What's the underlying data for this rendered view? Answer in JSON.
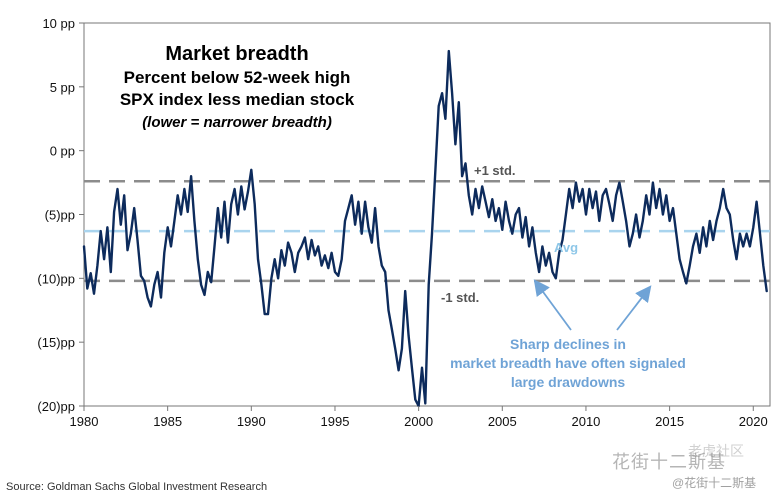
{
  "chart_data": {
    "type": "line",
    "title": "Market breadth",
    "subtitle_lines": [
      "Percent below 52-week high",
      "SPX index less median stock",
      "(lower = narrower breadth)"
    ],
    "xlabel": "",
    "ylabel": "",
    "xlim": [
      1980,
      2021
    ],
    "ylim": [
      -20,
      10
    ],
    "x_ticks": [
      1980,
      1985,
      1990,
      1995,
      2000,
      2005,
      2010,
      2015,
      2020
    ],
    "x_tick_labels": [
      "1980",
      "1985",
      "1990",
      "1995",
      "2000",
      "2005",
      "2010",
      "2015",
      "2020"
    ],
    "y_ticks": [
      10,
      5,
      0,
      -5,
      -10,
      -15,
      -20
    ],
    "y_tick_labels": [
      "10 pp",
      "5 pp",
      "0 pp",
      "(5)pp",
      "(10)pp",
      "(15)pp",
      "(20)pp"
    ],
    "reference_lines": [
      {
        "name": "+1 std.",
        "value": -2.4,
        "style": "dashed",
        "color": "#8c8c8c"
      },
      {
        "name": "Avg",
        "value": -6.3,
        "style": "dashed",
        "color": "#a9d4ee"
      },
      {
        "name": "-1 std.",
        "value": -10.2,
        "style": "dashed",
        "color": "#8c8c8c"
      }
    ],
    "annotation": {
      "text_lines": [
        "Sharp declines in",
        "market breadth have often signaled",
        "large drawdowns"
      ],
      "arrow_targets": [
        [
          2008.2,
          -10.2
        ],
        [
          2016.3,
          -10.4
        ]
      ]
    },
    "series": [
      {
        "name": "SPX index less median stock",
        "color": "#0d2b5c",
        "points": [
          [
            1980.0,
            -7.5
          ],
          [
            1980.2,
            -10.8
          ],
          [
            1980.4,
            -9.6
          ],
          [
            1980.6,
            -11.2
          ],
          [
            1980.8,
            -9.0
          ],
          [
            1981.0,
            -6.3
          ],
          [
            1981.2,
            -8.5
          ],
          [
            1981.4,
            -6.0
          ],
          [
            1981.6,
            -9.5
          ],
          [
            1981.8,
            -4.8
          ],
          [
            1982.0,
            -3.0
          ],
          [
            1982.2,
            -5.8
          ],
          [
            1982.4,
            -3.5
          ],
          [
            1982.6,
            -7.8
          ],
          [
            1982.8,
            -6.5
          ],
          [
            1983.0,
            -4.5
          ],
          [
            1983.2,
            -7.0
          ],
          [
            1983.4,
            -9.8
          ],
          [
            1983.6,
            -10.2
          ],
          [
            1983.8,
            -11.5
          ],
          [
            1984.0,
            -12.2
          ],
          [
            1984.2,
            -10.5
          ],
          [
            1984.4,
            -9.5
          ],
          [
            1984.6,
            -11.5
          ],
          [
            1984.8,
            -8.0
          ],
          [
            1985.0,
            -6.0
          ],
          [
            1985.2,
            -7.5
          ],
          [
            1985.4,
            -5.5
          ],
          [
            1985.6,
            -3.5
          ],
          [
            1985.8,
            -5.0
          ],
          [
            1986.0,
            -3.0
          ],
          [
            1986.2,
            -4.8
          ],
          [
            1986.4,
            -2.0
          ],
          [
            1986.6,
            -5.5
          ],
          [
            1986.8,
            -8.5
          ],
          [
            1987.0,
            -10.5
          ],
          [
            1987.2,
            -11.3
          ],
          [
            1987.4,
            -9.5
          ],
          [
            1987.6,
            -10.3
          ],
          [
            1987.8,
            -7.5
          ],
          [
            1988.0,
            -4.5
          ],
          [
            1988.2,
            -6.8
          ],
          [
            1988.4,
            -4.0
          ],
          [
            1988.6,
            -7.2
          ],
          [
            1988.8,
            -4.2
          ],
          [
            1989.0,
            -3.0
          ],
          [
            1989.2,
            -5.0
          ],
          [
            1989.4,
            -2.8
          ],
          [
            1989.6,
            -4.6
          ],
          [
            1989.8,
            -3.2
          ],
          [
            1990.0,
            -1.5
          ],
          [
            1990.2,
            -4.2
          ],
          [
            1990.4,
            -8.5
          ],
          [
            1990.6,
            -10.5
          ],
          [
            1990.8,
            -12.8
          ],
          [
            1991.0,
            -12.8
          ],
          [
            1991.2,
            -10.0
          ],
          [
            1991.4,
            -8.5
          ],
          [
            1991.6,
            -10.0
          ],
          [
            1991.8,
            -7.8
          ],
          [
            1992.0,
            -9.0
          ],
          [
            1992.2,
            -7.2
          ],
          [
            1992.4,
            -8.0
          ],
          [
            1992.6,
            -9.5
          ],
          [
            1992.8,
            -8.0
          ],
          [
            1993.0,
            -7.5
          ],
          [
            1993.2,
            -6.8
          ],
          [
            1993.4,
            -8.5
          ],
          [
            1993.6,
            -7.0
          ],
          [
            1993.8,
            -8.2
          ],
          [
            1994.0,
            -7.5
          ],
          [
            1994.2,
            -9.0
          ],
          [
            1994.4,
            -8.2
          ],
          [
            1994.6,
            -9.2
          ],
          [
            1994.8,
            -8.0
          ],
          [
            1995.0,
            -9.5
          ],
          [
            1995.2,
            -9.8
          ],
          [
            1995.4,
            -8.5
          ],
          [
            1995.6,
            -5.5
          ],
          [
            1995.8,
            -4.5
          ],
          [
            1996.0,
            -3.5
          ],
          [
            1996.2,
            -5.8
          ],
          [
            1996.4,
            -4.0
          ],
          [
            1996.6,
            -6.5
          ],
          [
            1996.8,
            -4.0
          ],
          [
            1997.0,
            -6.0
          ],
          [
            1997.2,
            -7.2
          ],
          [
            1997.4,
            -4.5
          ],
          [
            1997.6,
            -7.5
          ],
          [
            1997.8,
            -9.0
          ],
          [
            1998.0,
            -9.5
          ],
          [
            1998.2,
            -12.5
          ],
          [
            1998.4,
            -14.0
          ],
          [
            1998.6,
            -15.5
          ],
          [
            1998.8,
            -17.2
          ],
          [
            1999.0,
            -15.5
          ],
          [
            1999.2,
            -11.0
          ],
          [
            1999.4,
            -14.5
          ],
          [
            1999.6,
            -17.0
          ],
          [
            1999.8,
            -19.5
          ],
          [
            2000.0,
            -20.0
          ],
          [
            2000.2,
            -17.0
          ],
          [
            2000.4,
            -19.8
          ],
          [
            2000.6,
            -10.5
          ],
          [
            2000.8,
            -6.5
          ],
          [
            2001.0,
            -1.5
          ],
          [
            2001.2,
            3.5
          ],
          [
            2001.4,
            4.5
          ],
          [
            2001.6,
            2.5
          ],
          [
            2001.8,
            7.8
          ],
          [
            2002.0,
            4.5
          ],
          [
            2002.2,
            0.5
          ],
          [
            2002.4,
            3.8
          ],
          [
            2002.6,
            -2.0
          ],
          [
            2002.8,
            -1.0
          ],
          [
            2003.0,
            -3.5
          ],
          [
            2003.2,
            -5.0
          ],
          [
            2003.4,
            -3.0
          ],
          [
            2003.6,
            -4.5
          ],
          [
            2003.8,
            -2.8
          ],
          [
            2004.0,
            -4.0
          ],
          [
            2004.2,
            -5.2
          ],
          [
            2004.4,
            -3.8
          ],
          [
            2004.6,
            -5.5
          ],
          [
            2004.8,
            -4.5
          ],
          [
            2005.0,
            -6.2
          ],
          [
            2005.2,
            -4.0
          ],
          [
            2005.4,
            -5.5
          ],
          [
            2005.6,
            -6.5
          ],
          [
            2005.8,
            -5.0
          ],
          [
            2006.0,
            -4.5
          ],
          [
            2006.2,
            -6.8
          ],
          [
            2006.4,
            -5.2
          ],
          [
            2006.6,
            -7.5
          ],
          [
            2006.8,
            -6.0
          ],
          [
            2007.0,
            -8.0
          ],
          [
            2007.2,
            -9.5
          ],
          [
            2007.4,
            -7.5
          ],
          [
            2007.6,
            -9.0
          ],
          [
            2007.8,
            -8.0
          ],
          [
            2008.0,
            -9.5
          ],
          [
            2008.2,
            -10.0
          ],
          [
            2008.4,
            -8.0
          ],
          [
            2008.6,
            -7.0
          ],
          [
            2008.8,
            -5.0
          ],
          [
            2009.0,
            -3.0
          ],
          [
            2009.2,
            -4.5
          ],
          [
            2009.4,
            -2.5
          ],
          [
            2009.6,
            -4.0
          ],
          [
            2009.8,
            -3.0
          ],
          [
            2010.0,
            -5.0
          ],
          [
            2010.2,
            -3.0
          ],
          [
            2010.4,
            -4.5
          ],
          [
            2010.6,
            -3.2
          ],
          [
            2010.8,
            -5.5
          ],
          [
            2011.0,
            -3.5
          ],
          [
            2011.2,
            -3.0
          ],
          [
            2011.4,
            -4.2
          ],
          [
            2011.6,
            -5.5
          ],
          [
            2011.8,
            -3.5
          ],
          [
            2012.0,
            -2.5
          ],
          [
            2012.2,
            -4.0
          ],
          [
            2012.4,
            -5.5
          ],
          [
            2012.6,
            -7.5
          ],
          [
            2012.8,
            -6.5
          ],
          [
            2013.0,
            -5.0
          ],
          [
            2013.2,
            -6.8
          ],
          [
            2013.4,
            -5.5
          ],
          [
            2013.6,
            -3.5
          ],
          [
            2013.8,
            -5.0
          ],
          [
            2014.0,
            -2.5
          ],
          [
            2014.2,
            -4.5
          ],
          [
            2014.4,
            -3.0
          ],
          [
            2014.6,
            -5.0
          ],
          [
            2014.8,
            -3.5
          ],
          [
            2015.0,
            -5.5
          ],
          [
            2015.2,
            -4.5
          ],
          [
            2015.4,
            -6.5
          ],
          [
            2015.6,
            -8.5
          ],
          [
            2015.8,
            -9.5
          ],
          [
            2016.0,
            -10.4
          ],
          [
            2016.2,
            -9.0
          ],
          [
            2016.4,
            -7.5
          ],
          [
            2016.6,
            -6.5
          ],
          [
            2016.8,
            -8.0
          ],
          [
            2017.0,
            -6.0
          ],
          [
            2017.2,
            -7.5
          ],
          [
            2017.4,
            -5.5
          ],
          [
            2017.6,
            -7.0
          ],
          [
            2017.8,
            -5.5
          ],
          [
            2018.0,
            -4.5
          ],
          [
            2018.2,
            -3.0
          ],
          [
            2018.4,
            -4.5
          ],
          [
            2018.6,
            -5.0
          ],
          [
            2018.8,
            -7.0
          ],
          [
            2019.0,
            -8.5
          ],
          [
            2019.2,
            -6.5
          ],
          [
            2019.4,
            -7.5
          ],
          [
            2019.6,
            -6.5
          ],
          [
            2019.8,
            -7.5
          ],
          [
            2020.0,
            -6.0
          ],
          [
            2020.2,
            -4.0
          ],
          [
            2020.4,
            -6.5
          ],
          [
            2020.6,
            -9.0
          ],
          [
            2020.8,
            -11.0
          ]
        ]
      }
    ]
  },
  "source": "Source: Goldman Sachs Global Investment Research",
  "watermark": "花街十二斯基",
  "watermark_small": "@花街十二斯基",
  "watermark_top": "老虎社区"
}
